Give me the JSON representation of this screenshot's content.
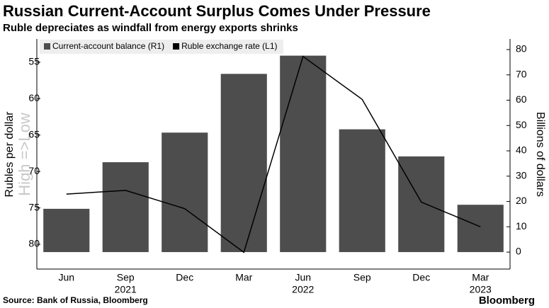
{
  "chart_data": {
    "type": "bar_line",
    "title": "Russian Current-Account Surplus Comes Under Pressure",
    "subtitle": "Ruble depreciates as windfall from energy exports shrinks",
    "ylabel": "Rubles per dollar",
    "ylabel_note": "High =>Low",
    "y2label": "Billions of dollars",
    "categories": [
      "Jun",
      "Sep",
      "Dec",
      "Mar",
      "Jun",
      "Sep",
      "Dec",
      "Mar"
    ],
    "year_labels": [
      null,
      "2021",
      null,
      null,
      "2022",
      null,
      null,
      "2023"
    ],
    "series": [
      {
        "name": "Current-account balance (R1)",
        "color": "#4d4d4d",
        "axis": "y2",
        "kind": "bar",
        "values": [
          17.1,
          35.5,
          47.2,
          70.4,
          77.6,
          48.5,
          37.8,
          18.7
        ]
      },
      {
        "name": "Ruble exchange rate (L1)",
        "color": "#000000",
        "axis": "y",
        "kind": "line",
        "values": [
          73.1,
          72.6,
          75.1,
          81.1,
          54.2,
          60.1,
          74.2,
          77.6
        ]
      }
    ],
    "ylim": [
      83.4,
      51.8
    ],
    "yticks": [
      55,
      60,
      65,
      70,
      75,
      80
    ],
    "y2lim": [
      -6.7,
      84.2
    ],
    "y2ticks": [
      0,
      10,
      20,
      30,
      40,
      50,
      60,
      70,
      80
    ],
    "source": "Source: Bank of Russia, Bloomberg",
    "brand": "Bloomberg"
  }
}
